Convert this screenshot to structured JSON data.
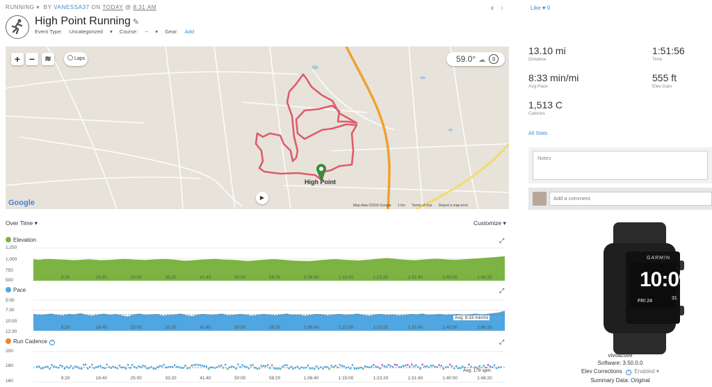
{
  "header": {
    "activity_type": "RUNNING",
    "by": "BY",
    "user": "VANESSA37",
    "on": "ON",
    "when": "TODAY",
    "at": "@",
    "time": "8:31 AM",
    "title": "High Point Running",
    "event_type_label": "Event Type:",
    "event_type_value": "Uncategorized",
    "course_label": "Course:",
    "course_value": "--",
    "gear_label": "Gear:",
    "gear_add": "Add",
    "like_label": "Like",
    "like_count": "0"
  },
  "map": {
    "laps_label": "Laps",
    "temperature": "59.0°",
    "wind": "9",
    "city_label": "High Point",
    "google_label": "Google",
    "map_data": "Map data ©2016 Google",
    "scale": "1 km",
    "terms": "Terms of Use",
    "report": "Report a map error"
  },
  "charts": {
    "range_label": "Over Time",
    "customize_label": "Customize",
    "x_ticks": [
      "8:20",
      "16:40",
      "25:00",
      "33:20",
      "41:40",
      "50:00",
      "58:20",
      "1:06:40",
      "1:15:00",
      "1:23:20",
      "1:31:40",
      "1:40:00",
      "1:48:20"
    ],
    "elevation": {
      "label": "Elevation",
      "color": "#7cb342",
      "y_ticks": [
        "1,250",
        "1,000",
        "750",
        "500"
      ],
      "ylim": [
        500,
        1250
      ],
      "values": [
        990,
        980,
        995,
        1000,
        990,
        985,
        980,
        970,
        975,
        985,
        990,
        980,
        970,
        975,
        980,
        990,
        1000,
        995,
        985,
        980,
        975,
        985,
        990,
        1000,
        995,
        985,
        970,
        960,
        965,
        975,
        985,
        990,
        1000,
        995,
        985,
        980,
        975,
        965,
        955,
        960,
        970,
        980,
        990,
        995,
        985,
        975,
        965,
        960,
        955,
        950,
        960,
        970,
        980,
        990,
        995,
        985,
        975,
        970,
        965,
        975,
        985,
        1000,
        1010,
        1020,
        1010,
        995,
        985,
        975,
        970,
        980,
        990,
        1000,
        1005,
        995,
        985,
        980,
        985,
        995,
        1005,
        1010,
        1020,
        1030,
        1040,
        1050,
        1060
      ]
    },
    "pace": {
      "label": "Pace",
      "color": "#4fa6e0",
      "y_ticks": [
        "5:00",
        "7:30",
        "10:00",
        "12:30"
      ],
      "ylim_min_per_mi": [
        5.0,
        12.5
      ],
      "avg_label": "Avg: 8:33 min/mi",
      "avg": 8.55,
      "values": [
        8.4,
        8.6,
        8.5,
        8.3,
        8.6,
        8.7,
        8.4,
        8.5,
        8.2,
        8.6,
        8.8,
        8.5,
        8.3,
        8.6,
        8.4,
        8.7,
        9.0,
        8.5,
        8.3,
        8.6,
        8.5,
        8.4,
        8.8,
        8.6,
        8.5,
        8.3,
        8.7,
        8.9,
        8.5,
        8.4,
        8.6,
        8.5,
        8.3,
        8.7,
        8.6,
        8.4,
        8.5,
        8.8,
        8.6,
        8.4,
        8.5,
        8.7,
        8.5,
        8.3,
        8.6,
        8.5,
        8.8,
        8.6,
        8.4,
        8.5,
        8.7,
        8.5,
        8.4,
        8.6,
        8.5,
        8.3,
        8.6,
        8.8,
        8.5,
        8.4,
        8.6,
        8.5,
        8.7,
        8.6,
        8.4,
        8.5,
        8.3,
        8.6,
        8.5,
        8.4,
        8.6,
        8.5,
        8.4,
        8.6,
        8.5,
        8.3,
        8.5,
        8.4,
        8.2,
        8.0,
        7.6
      ]
    },
    "cadence": {
      "label": "Run Cadence",
      "color": "#e8862a",
      "y_ticks": [
        "200",
        "180",
        "160"
      ],
      "ylim": [
        160,
        200
      ],
      "avg_label": "Avg: 179 spm",
      "avg": 179
    }
  },
  "stats": {
    "distance_value": "13.10 mi",
    "distance_label": "Distance",
    "time_value": "1:51:56",
    "time_label": "Time",
    "pace_value": "8:33 min/mi",
    "pace_label": "Avg Pace",
    "elev_value": "555 ft",
    "elev_label": "Elev Gain",
    "cal_value": "1,513 C",
    "cal_label": "Calories",
    "all_stats": "All Stats"
  },
  "notes_placeholder": "Notes",
  "comment_placeholder": "Add a comment.",
  "device": {
    "name": "vivoactive",
    "software_label": "Software: 3.50.0.0",
    "elev_corr_label": "Elev Corrections",
    "elev_corr_value": "Enabled",
    "summary_label": "Summary Data: Original",
    "watch_brand": "GARMIN",
    "watch_time": "10:09",
    "watch_date": "FRI 24",
    "watch_num": "31"
  }
}
